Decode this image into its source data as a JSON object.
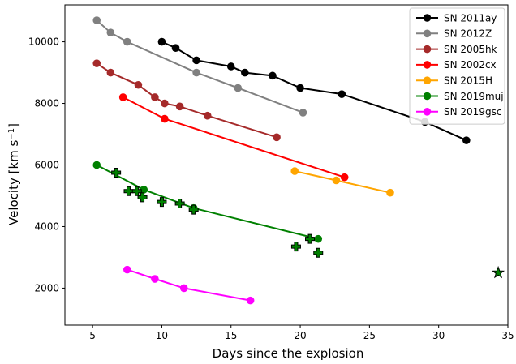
{
  "chart_data": {
    "type": "line",
    "xlabel": "Days since the explosion",
    "ylabel_main": "Velocity [km s",
    "ylabel_sup": "−1",
    "ylabel_close": "]",
    "xlim": [
      3,
      35
    ],
    "ylim": [
      800,
      11200
    ],
    "xticks": [
      5,
      10,
      15,
      20,
      25,
      30,
      35
    ],
    "yticks": [
      2000,
      4000,
      6000,
      8000,
      10000
    ],
    "legend_position": "top-right",
    "series": [
      {
        "name": "SN 2011ay",
        "color": "#000000",
        "x": [
          10.0,
          11.0,
          12.5,
          15.0,
          16.0,
          18.0,
          20.0,
          23.0,
          29.0,
          32.0
        ],
        "y": [
          10000,
          9800,
          9400,
          9200,
          9000,
          8900,
          8500,
          8300,
          7400,
          6800
        ]
      },
      {
        "name": "SN 2012Z",
        "color": "#808080",
        "x": [
          5.3,
          6.3,
          7.5,
          12.5,
          15.5,
          20.2
        ],
        "y": [
          10700,
          10300,
          10000,
          9000,
          8500,
          7700
        ]
      },
      {
        "name": "SN 2005hk",
        "color": "#a52a2a",
        "x": [
          5.3,
          6.3,
          8.3,
          9.5,
          10.2,
          11.3,
          13.3,
          18.3
        ],
        "y": [
          9300,
          9000,
          8600,
          8200,
          8000,
          7900,
          7600,
          6900
        ]
      },
      {
        "name": "SN 2002cx",
        "color": "#ff0000",
        "x": [
          7.2,
          10.2,
          23.2
        ],
        "y": [
          8200,
          7500,
          5600
        ]
      },
      {
        "name": "SN 2015H",
        "color": "#ffa500",
        "x": [
          19.6,
          22.6,
          26.5
        ],
        "y": [
          5800,
          5500,
          5100
        ]
      },
      {
        "name": "SN 2019muj",
        "color": "#008000",
        "x": [
          5.3,
          8.7,
          12.3,
          21.3
        ],
        "y": [
          6000,
          5200,
          4600,
          3600
        ]
      },
      {
        "name": "SN 2019gsc",
        "color": "#ff00ff",
        "x": [
          7.5,
          9.5,
          11.6,
          16.4
        ],
        "y": [
          2600,
          2300,
          2000,
          1600
        ]
      }
    ],
    "extra_markers": {
      "color": "#008000",
      "plus_x": [
        6.7,
        7.6,
        8.2,
        8.6,
        10.0,
        11.3,
        12.3,
        19.7,
        20.7,
        21.3
      ],
      "plus_y": [
        5750,
        5150,
        5150,
        4950,
        4800,
        4750,
        4550,
        3350,
        3600,
        3150
      ],
      "star_x": [
        34.3
      ],
      "star_y": [
        2500
      ]
    }
  }
}
